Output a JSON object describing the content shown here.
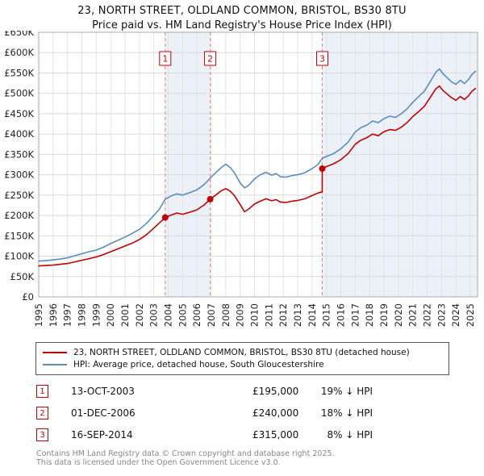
{
  "chart_data": {
    "type": "line",
    "title": "23, NORTH STREET, OLDLAND COMMON, BRISTOL, BS30 8TU",
    "subtitle": "Price paid vs. HM Land Registry's House Price Index (HPI)",
    "xlabel": "",
    "ylabel": "",
    "xlim": [
      1995,
      2025.5
    ],
    "ylim_k": [
      0,
      650
    ],
    "grid": true,
    "legend_position": "bottom",
    "band_color": "#dce6f4",
    "sale_line_color": "#e58080",
    "x_ticks": [
      1995,
      1996,
      1997,
      1998,
      1999,
      2000,
      2001,
      2002,
      2003,
      2004,
      2005,
      2006,
      2007,
      2008,
      2009,
      2010,
      2011,
      2012,
      2013,
      2014,
      2015,
      2016,
      2017,
      2018,
      2019,
      2020,
      2021,
      2022,
      2023,
      2024,
      2025
    ],
    "y_ticks": {
      "values_k": [
        0,
        50,
        100,
        150,
        200,
        250,
        300,
        350,
        400,
        450,
        500,
        550,
        600,
        650
      ],
      "labels": [
        "£0",
        "£50K",
        "£100K",
        "£150K",
        "£200K",
        "£250K",
        "£300K",
        "£350K",
        "£400K",
        "£450K",
        "£500K",
        "£550K",
        "£600K",
        "£650K"
      ]
    },
    "series": [
      {
        "id": "price-paid",
        "name": "23, NORTH STREET, OLDLAND COMMON, BRISTOL, BS30 8TU (detached house)",
        "color": "#c00000",
        "points_k": [
          [
            1995,
            76
          ],
          [
            1995.5,
            77
          ],
          [
            1996,
            78
          ],
          [
            1996.5,
            80
          ],
          [
            1997,
            82
          ],
          [
            1997.5,
            86
          ],
          [
            1998,
            90
          ],
          [
            1998.5,
            94
          ],
          [
            1999,
            98
          ],
          [
            1999.5,
            104
          ],
          [
            2000,
            111
          ],
          [
            2000.5,
            118
          ],
          [
            2001,
            125
          ],
          [
            2001.5,
            132
          ],
          [
            2002,
            141
          ],
          [
            2002.5,
            153
          ],
          [
            2003,
            169
          ],
          [
            2003.4,
            182
          ],
          [
            2003.79,
            195
          ],
          [
            2004.2,
            201
          ],
          [
            2004.6,
            206
          ],
          [
            2005,
            203
          ],
          [
            2005.5,
            208
          ],
          [
            2006,
            214
          ],
          [
            2006.5,
            226
          ],
          [
            2006.92,
            240
          ],
          [
            2007.3,
            250
          ],
          [
            2007.7,
            261
          ],
          [
            2008,
            266
          ],
          [
            2008.3,
            260
          ],
          [
            2008.6,
            249
          ],
          [
            2009,
            227
          ],
          [
            2009.3,
            209
          ],
          [
            2009.6,
            216
          ],
          [
            2010,
            228
          ],
          [
            2010.4,
            235
          ],
          [
            2010.8,
            241
          ],
          [
            2011.2,
            236
          ],
          [
            2011.5,
            239
          ],
          [
            2011.8,
            233
          ],
          [
            2012.2,
            232
          ],
          [
            2012.6,
            235
          ],
          [
            2013,
            237
          ],
          [
            2013.5,
            241
          ],
          [
            2014,
            249
          ],
          [
            2014.4,
            255
          ],
          [
            2014.7,
            258
          ],
          [
            2014.71,
            315
          ],
          [
            2015,
            320
          ],
          [
            2015.5,
            327
          ],
          [
            2016,
            337
          ],
          [
            2016.5,
            352
          ],
          [
            2017,
            375
          ],
          [
            2017.4,
            385
          ],
          [
            2017.8,
            391
          ],
          [
            2018.2,
            400
          ],
          [
            2018.6,
            396
          ],
          [
            2019,
            406
          ],
          [
            2019.4,
            411
          ],
          [
            2019.8,
            409
          ],
          [
            2020.2,
            417
          ],
          [
            2020.6,
            428
          ],
          [
            2021,
            443
          ],
          [
            2021.4,
            455
          ],
          [
            2021.8,
            468
          ],
          [
            2022.2,
            489
          ],
          [
            2022.6,
            511
          ],
          [
            2022.85,
            518
          ],
          [
            2023.1,
            507
          ],
          [
            2023.4,
            498
          ],
          [
            2023.7,
            489
          ],
          [
            2024,
            483
          ],
          [
            2024.3,
            492
          ],
          [
            2024.6,
            485
          ],
          [
            2024.9,
            495
          ],
          [
            2025.1,
            505
          ],
          [
            2025.35,
            512
          ]
        ]
      },
      {
        "id": "hpi",
        "name": "HPI: Average price, detached house, South Gloucestershire",
        "color": "#5b8cbe",
        "points_k": [
          [
            1995,
            88
          ],
          [
            1995.5,
            89
          ],
          [
            1996,
            91
          ],
          [
            1996.5,
            93
          ],
          [
            1997,
            96
          ],
          [
            1997.5,
            101
          ],
          [
            1998,
            106
          ],
          [
            1998.5,
            111
          ],
          [
            1999,
            115
          ],
          [
            1999.5,
            122
          ],
          [
            2000,
            131
          ],
          [
            2000.5,
            139
          ],
          [
            2001,
            147
          ],
          [
            2001.5,
            156
          ],
          [
            2002,
            166
          ],
          [
            2002.5,
            181
          ],
          [
            2003,
            200
          ],
          [
            2003.4,
            216
          ],
          [
            2003.79,
            240
          ],
          [
            2004.2,
            248
          ],
          [
            2004.6,
            253
          ],
          [
            2005,
            250
          ],
          [
            2005.5,
            256
          ],
          [
            2006,
            263
          ],
          [
            2006.5,
            276
          ],
          [
            2006.92,
            292
          ],
          [
            2007.3,
            305
          ],
          [
            2007.7,
            318
          ],
          [
            2008,
            326
          ],
          [
            2008.3,
            318
          ],
          [
            2008.6,
            305
          ],
          [
            2009,
            280
          ],
          [
            2009.3,
            268
          ],
          [
            2009.6,
            274
          ],
          [
            2010,
            290
          ],
          [
            2010.4,
            300
          ],
          [
            2010.8,
            306
          ],
          [
            2011.2,
            299
          ],
          [
            2011.5,
            303
          ],
          [
            2011.8,
            295
          ],
          [
            2012.2,
            294
          ],
          [
            2012.6,
            298
          ],
          [
            2013,
            300
          ],
          [
            2013.5,
            305
          ],
          [
            2014,
            315
          ],
          [
            2014.4,
            325
          ],
          [
            2014.71,
            340
          ],
          [
            2015,
            345
          ],
          [
            2015.5,
            352
          ],
          [
            2016,
            364
          ],
          [
            2016.5,
            380
          ],
          [
            2017,
            405
          ],
          [
            2017.4,
            416
          ],
          [
            2017.8,
            422
          ],
          [
            2018.2,
            432
          ],
          [
            2018.6,
            428
          ],
          [
            2019,
            438
          ],
          [
            2019.4,
            444
          ],
          [
            2019.8,
            441
          ],
          [
            2020.2,
            450
          ],
          [
            2020.6,
            462
          ],
          [
            2021,
            478
          ],
          [
            2021.4,
            492
          ],
          [
            2021.8,
            505
          ],
          [
            2022.2,
            528
          ],
          [
            2022.6,
            552
          ],
          [
            2022.85,
            560
          ],
          [
            2023.1,
            548
          ],
          [
            2023.4,
            538
          ],
          [
            2023.7,
            528
          ],
          [
            2024,
            522
          ],
          [
            2024.3,
            532
          ],
          [
            2024.6,
            524
          ],
          [
            2024.9,
            535
          ],
          [
            2025.1,
            546
          ],
          [
            2025.35,
            554
          ]
        ]
      }
    ],
    "sales": [
      {
        "n": 1,
        "date": "13-OCT-2003",
        "price": "£195,000",
        "price_k": 195,
        "hpi_diff": "19% ↓ HPI",
        "x": 2003.79
      },
      {
        "n": 2,
        "date": "01-DEC-2006",
        "price": "£240,000",
        "price_k": 240,
        "hpi_diff": "18% ↓ HPI",
        "x": 2006.92
      },
      {
        "n": 3,
        "date": "16-SEP-2014",
        "price": "£315,000",
        "price_k": 315,
        "hpi_diff": "8% ↓ HPI",
        "x": 2014.71
      }
    ],
    "bands": [
      [
        2003.79,
        2006.92
      ],
      [
        2014.71,
        2025.5
      ]
    ]
  },
  "footer": {
    "line1": "Contains HM Land Registry data © Crown copyright and database right 2025.",
    "line2": "This data is licensed under the Open Government Licence v3.0."
  }
}
